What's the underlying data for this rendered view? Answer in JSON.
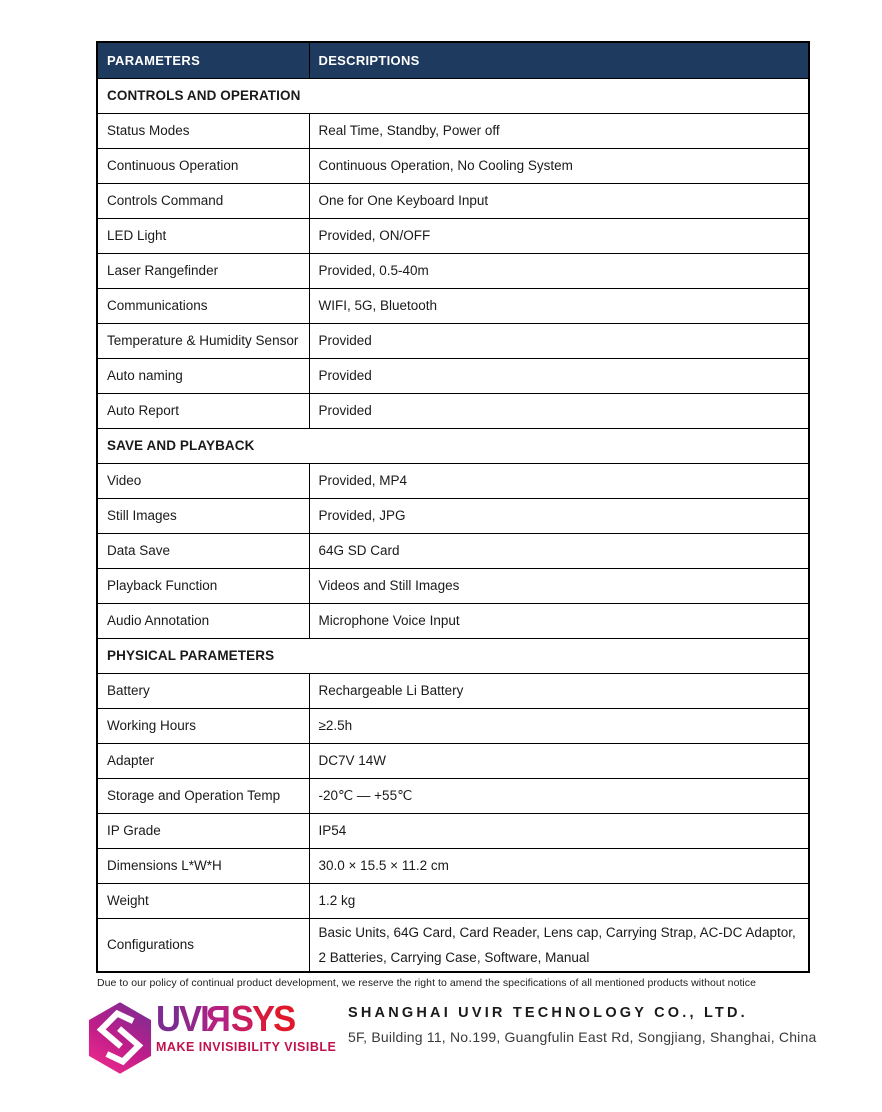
{
  "table": {
    "header": {
      "col1": "PARAMETERS",
      "col2": "DESCRIPTIONS"
    },
    "sections": [
      {
        "title": "CONTROLS AND OPERATION",
        "rows": [
          {
            "param": "Status Modes",
            "desc": "Real Time, Standby, Power off"
          },
          {
            "param": "Continuous Operation",
            "desc": "Continuous Operation, No Cooling System"
          },
          {
            "param": "Controls Command",
            "desc": "One for One Keyboard Input"
          },
          {
            "param": "LED Light",
            "desc": "Provided, ON/OFF"
          },
          {
            "param": "Laser Rangefinder",
            "desc": "Provided, 0.5-40m"
          },
          {
            "param": "Communications",
            "desc": "WIFI, 5G, Bluetooth"
          },
          {
            "param": "Temperature & Humidity Sensor",
            "desc": "Provided"
          },
          {
            "param": "Auto naming",
            "desc": "Provided"
          },
          {
            "param": "Auto Report",
            "desc": "Provided"
          }
        ]
      },
      {
        "title": "SAVE AND PLAYBACK",
        "rows": [
          {
            "param": "Video",
            "desc": "Provided, MP4"
          },
          {
            "param": "Still Images",
            "desc": "Provided, JPG"
          },
          {
            "param": "Data Save",
            "desc": "64G SD Card"
          },
          {
            "param": "Playback Function",
            "desc": "Videos and Still Images"
          },
          {
            "param": "Audio Annotation",
            "desc": "Microphone Voice Input"
          }
        ]
      },
      {
        "title": "PHYSICAL PARAMETERS",
        "rows": [
          {
            "param": "Battery",
            "desc": "Rechargeable Li Battery"
          },
          {
            "param": "Working Hours",
            "desc": "≥2.5h"
          },
          {
            "param": "Adapter",
            "desc": "DC7V 14W"
          },
          {
            "param": "Storage and Operation Temp",
            "desc": "-20℃ — +55℃"
          },
          {
            "param": "IP Grade",
            "desc": "IP54"
          },
          {
            "param": "Dimensions L*W*H",
            "desc": "30.0 × 15.5 × 11.2 cm"
          },
          {
            "param": "Weight",
            "desc": "1.2 kg"
          },
          {
            "param": "Configurations",
            "desc": "Basic Units, 64G Card, Card Reader, Lens cap, Carrying Strap, AC-DC Adaptor, 2 Batteries, Carrying Case, Software, Manual",
            "tall": true
          }
        ]
      }
    ]
  },
  "footnote": "Due to our policy of continual product development, we reserve the right to amend the specifications of all mentioned products without notice",
  "brand": {
    "logo_icon": "uvirsys-hexagon-icon",
    "logo_letters": [
      {
        "ch": "U",
        "color": "#7e2b91"
      },
      {
        "ch": "V",
        "color": "#91278d"
      },
      {
        "ch": "I",
        "color": "#a32488"
      },
      {
        "ch": "R",
        "color": "#b52181",
        "flip": true
      },
      {
        "ch": "S",
        "color": "#c81e5e"
      },
      {
        "ch": "Y",
        "color": "#d61b3c"
      },
      {
        "ch": "S",
        "color": "#e0182b"
      }
    ],
    "tagline": "MAKE INVISIBILITY VISIBLE",
    "company_name": "SHANGHAI UVIR TECHNOLOGY CO., LTD.",
    "company_address": "5F, Building 11, No.199, Guangfulin East Rd, Songjiang, Shanghai, China"
  },
  "colors": {
    "table_header_bg": "#1e3a5e",
    "table_border": "#000000",
    "tagline_color": "#c0124f",
    "hex_gradient_top": "#7f2c92",
    "hex_gradient_bottom": "#ee2b8c"
  }
}
